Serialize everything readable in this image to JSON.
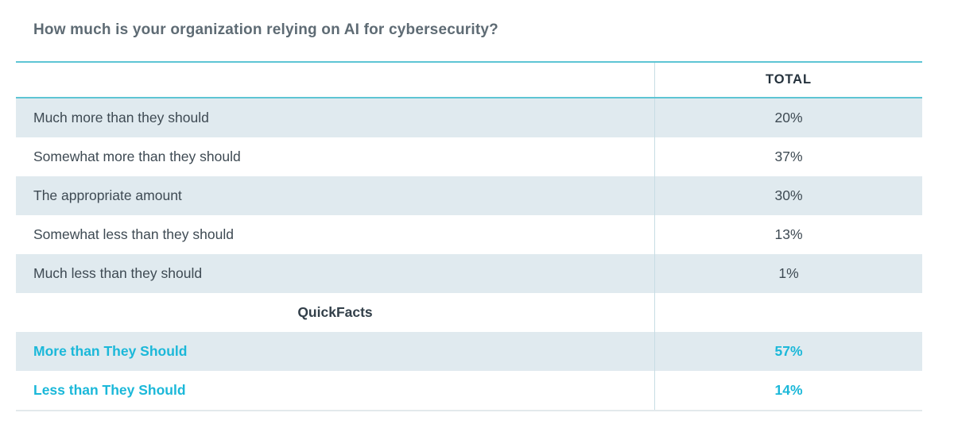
{
  "page": {
    "title": "How much is your organization relying on AI for cybersecurity?"
  },
  "table": {
    "header": {
      "label": "",
      "total": "TOTAL"
    },
    "rows": [
      {
        "label": "Much more than they should",
        "value": "20%"
      },
      {
        "label": "Somewhat more than they should",
        "value": "37%"
      },
      {
        "label": "The appropriate amount",
        "value": "30%"
      },
      {
        "label": "Somewhat less than they should",
        "value": "13%"
      },
      {
        "label": "Much less than they should",
        "value": "1%"
      },
      {
        "label": "QuickFacts",
        "value": ""
      },
      {
        "label": "More than They Should",
        "value": "57%"
      },
      {
        "label": "Less than They Should",
        "value": "14%"
      }
    ]
  },
  "chart_data": {
    "type": "table",
    "title": "How much is your organization relying on AI for cybersecurity?",
    "columns": [
      "",
      "TOTAL"
    ],
    "rows": [
      [
        "Much more than they should",
        "20%"
      ],
      [
        "Somewhat more than they should",
        "37%"
      ],
      [
        "The appropriate amount",
        "30%"
      ],
      [
        "Somewhat less than they should",
        "13%"
      ],
      [
        "Much less than they should",
        "1%"
      ],
      [
        "QuickFacts",
        ""
      ],
      [
        "More than They Should",
        "57%"
      ],
      [
        "Less than They Should",
        "14%"
      ]
    ],
    "section_header_row": "QuickFacts",
    "highlighted_rows": [
      "More than They Should",
      "Less than They Should"
    ]
  },
  "colors": {
    "accent_teal_border": "#5ec5d4",
    "highlight_cyan": "#1bb8d9",
    "row_shade": "#e0eaef",
    "column_divider": "#c7dde4",
    "bottom_border": "#e3e9ec",
    "text_dark": "#3e4a53",
    "header_text": "#25323d",
    "title_text": "#5e6b74"
  }
}
